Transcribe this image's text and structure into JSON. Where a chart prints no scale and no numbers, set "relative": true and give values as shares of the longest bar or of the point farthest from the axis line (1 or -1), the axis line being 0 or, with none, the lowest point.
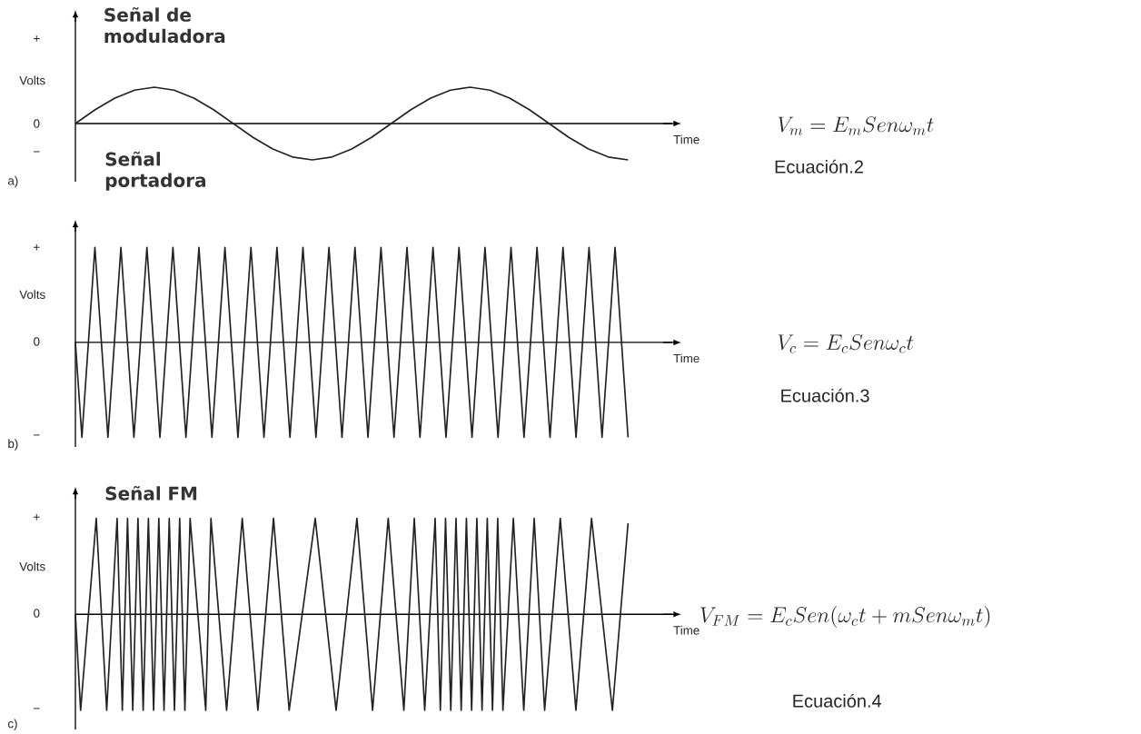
{
  "chart_data": [
    {
      "type": "line",
      "relative": true,
      "title": "Señal de moduladora",
      "xlabel": "Time",
      "ylabel": "Volts",
      "categories": [
        null,
        null,
        null,
        null,
        null,
        null,
        null,
        null,
        null,
        null,
        null,
        null,
        null,
        null,
        null,
        null,
        null,
        null,
        null,
        null,
        null,
        null,
        null,
        null,
        null,
        null,
        null,
        null,
        null
      ],
      "series": [
        {
          "color": "#222222",
          "values": [
            0,
            0.38,
            0.7,
            0.92,
            1,
            0.92,
            0.7,
            0.38,
            0,
            -0.38,
            -0.7,
            -0.92,
            -1,
            -0.92,
            -0.7,
            -0.38,
            0,
            0.38,
            0.7,
            0.92,
            1,
            0.92,
            0.7,
            0.38,
            0,
            -0.38,
            -0.7,
            -0.92,
            -1
          ]
        }
      ],
      "annotations": [
        "+",
        "0",
        "−",
        "a)",
        "V_{m}=E_{m}Sen\\omega_{m}t",
        "Ecuación.2"
      ]
    },
    {
      "type": "line",
      "relative": true,
      "title": "Señal portadora",
      "xlabel": "Time",
      "ylabel": "Volts",
      "categories": [
        null,
        null,
        null,
        null,
        null,
        null,
        null,
        null,
        null,
        null,
        null,
        null,
        null,
        null,
        null,
        null,
        null,
        null,
        null,
        null,
        null,
        null,
        null,
        null,
        null,
        null,
        null,
        null,
        null,
        null,
        null,
        null,
        null,
        null,
        null,
        null,
        null,
        null,
        null,
        null,
        null,
        null,
        null,
        null,
        null,
        null,
        null,
        null,
        null,
        null,
        null,
        null,
        null,
        null,
        null,
        null,
        null,
        null,
        null,
        null,
        null,
        null,
        null,
        null,
        null,
        null,
        null,
        null,
        null,
        null,
        null,
        null,
        null,
        null,
        null,
        null,
        null,
        null,
        null,
        null,
        null,
        null,
        null,
        null,
        null,
        null
      ],
      "series": [
        {
          "color": "#222222",
          "values": [
            0,
            -1,
            0,
            1,
            0,
            -1,
            0,
            1,
            0,
            -1,
            0,
            1,
            0,
            -1,
            0,
            1,
            0,
            -1,
            0,
            1,
            0,
            -1,
            0,
            1,
            0,
            -1,
            0,
            1,
            0,
            -1,
            0,
            1,
            0,
            -1,
            0,
            1,
            0,
            -1,
            0,
            1,
            0,
            -1,
            0,
            1,
            0,
            -1,
            0,
            1,
            0,
            -1,
            0,
            1,
            0,
            -1,
            0,
            1,
            0,
            -1,
            0,
            1,
            0,
            -1,
            0,
            1,
            0,
            -1,
            0,
            1,
            0,
            -1,
            0,
            1,
            0,
            -1,
            0,
            1,
            0,
            -1,
            0,
            1,
            0,
            -1,
            0,
            1,
            0,
            -1
          ]
        }
      ],
      "annotations": [
        "+",
        "0",
        "−",
        "b)",
        "V_{c}=E_{c}Sen\\omega_{c}t",
        "Ecuación.3"
      ]
    },
    {
      "type": "line",
      "relative": true,
      "title": "Señal FM",
      "xlabel": "Time",
      "ylabel": "Volts",
      "categories": [
        null,
        null,
        null,
        null,
        null,
        null,
        null,
        null,
        null,
        null,
        null,
        null,
        null,
        null,
        null,
        null,
        null,
        null,
        null,
        null,
        null,
        null,
        null,
        null,
        null,
        null,
        null,
        null,
        null,
        null,
        null,
        null,
        null,
        null,
        null,
        null,
        null,
        null,
        null,
        null,
        null,
        null,
        null,
        null,
        null,
        null,
        null,
        null,
        null,
        null,
        null,
        null,
        null,
        null,
        null,
        null,
        null,
        null,
        null,
        null,
        null,
        null,
        null,
        null,
        null,
        null,
        null,
        null,
        null,
        null,
        null,
        null,
        null,
        null,
        null,
        null,
        null,
        null,
        null,
        null,
        null,
        null,
        null,
        null,
        null,
        null,
        null,
        null,
        null,
        null,
        null,
        null,
        null,
        null,
        null,
        null,
        null,
        null,
        null,
        null,
        null,
        null,
        null,
        null,
        null,
        null,
        null
      ],
      "series": [
        {
          "color": "#222222",
          "values": [
            0,
            -1,
            -0.33,
            0.33,
            1,
            0,
            -1,
            0,
            1,
            -1,
            1,
            -1,
            1,
            -1,
            1,
            -1,
            1,
            -1,
            1,
            -1,
            1,
            -1,
            1,
            0.33,
            -0.33,
            -1,
            1,
            0.33,
            -0.33,
            -1,
            -0.33,
            0.33,
            1,
            0.33,
            -0.33,
            -1,
            -0.33,
            0.33,
            1,
            0.33,
            -0.33,
            -1,
            -0.6,
            -0.2,
            0.2,
            0.6,
            1,
            0.5,
            0,
            -0.5,
            -1,
            -0.5,
            0,
            0.5,
            1,
            0.33,
            -0.33,
            -1,
            -0.33,
            0.33,
            1,
            0.33,
            -0.33,
            -1,
            0,
            1,
            0,
            -1,
            0,
            1,
            -1,
            1,
            -1,
            1,
            -1,
            1,
            -1,
            1,
            -1,
            1,
            -1,
            1,
            -1,
            0,
            1,
            0,
            -1,
            0,
            1,
            0,
            -1,
            -0.33,
            0.33,
            1,
            0.33,
            -0.33,
            -1,
            -0.33,
            0.33,
            1,
            0.5,
            0,
            -0.5,
            -1,
            -0.35,
            0.3,
            0.95
          ]
        }
      ],
      "annotations": [
        "+",
        "0",
        "−",
        "c)",
        "V_{FM}=E_{c}Sen(\\omega_{c}t+mSen\\omega_{m}t)",
        "Ecuación.4"
      ]
    }
  ]
}
